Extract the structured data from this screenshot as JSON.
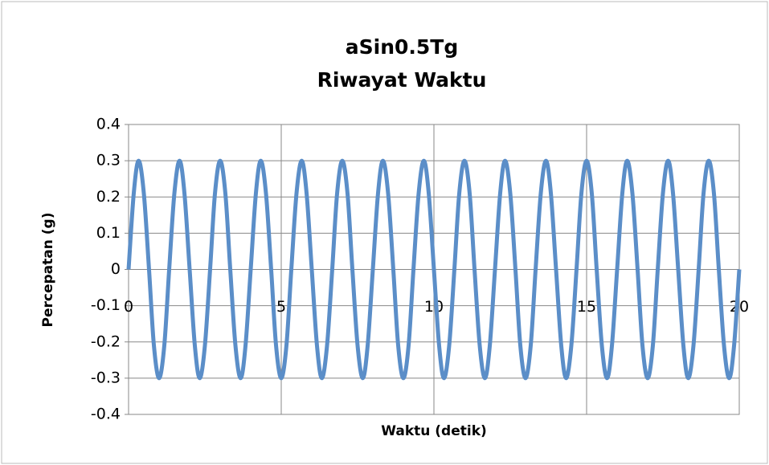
{
  "chart_data": {
    "type": "line",
    "title": "aSin0.5Tg",
    "subtitle": "Riwayat Waktu",
    "x_label": "Waktu (detik)",
    "y_label": "Percepatan (g)",
    "x": [
      0,
      0.17,
      0.33,
      0.5,
      0.67,
      0.83,
      1,
      1.17,
      1.33,
      1.5,
      1.67,
      1.83,
      2,
      2.17,
      2.33,
      2.5,
      2.67,
      2.83,
      3,
      3.17,
      3.33,
      3.5,
      3.67,
      3.83,
      4,
      4.17,
      4.33,
      4.5,
      4.67,
      4.83,
      5,
      5.17,
      5.33,
      5.5,
      5.67,
      5.83,
      6,
      6.17,
      6.33,
      6.5,
      6.67,
      6.83,
      7,
      7.17,
      7.33,
      7.5,
      7.67,
      7.83,
      8,
      8.17,
      8.33,
      8.5,
      8.67,
      8.83,
      9,
      9.17,
      9.33,
      9.5,
      9.67,
      9.83,
      10,
      10.17,
      10.33,
      10.5,
      10.67,
      10.83,
      11,
      11.17,
      11.33,
      11.5,
      11.67,
      11.83,
      12,
      12.17,
      12.33,
      12.5,
      12.67,
      12.83,
      13,
      13.17,
      13.33,
      13.5,
      13.67,
      13.83,
      14,
      14.17,
      14.33,
      14.5,
      14.67,
      14.83,
      15,
      15.17,
      15.33,
      15.5,
      15.67,
      15.83,
      16,
      16.17,
      16.33,
      16.5,
      16.67,
      16.83,
      17,
      17.17,
      17.33,
      17.5,
      17.67,
      17.83,
      18,
      18.17,
      18.33,
      18.5,
      18.67,
      18.83,
      19,
      19.17,
      19.33,
      19.5,
      19.67,
      19.83,
      20
    ],
    "series": [
      {
        "color": "#5b8ec8",
        "values": [
          0,
          0.21,
          0.3,
          0.21,
          0,
          -0.21,
          -0.3,
          -0.21,
          0,
          0.21,
          0.3,
          0.21,
          0,
          -0.21,
          -0.3,
          -0.21,
          0,
          0.21,
          0.3,
          0.21,
          0,
          -0.21,
          -0.3,
          -0.21,
          0,
          0.21,
          0.3,
          0.21,
          0,
          -0.21,
          -0.3,
          -0.21,
          0,
          0.21,
          0.3,
          0.21,
          0,
          -0.21,
          -0.3,
          -0.21,
          0,
          0.21,
          0.3,
          0.21,
          0,
          -0.21,
          -0.3,
          -0.21,
          0,
          0.21,
          0.3,
          0.21,
          0,
          -0.21,
          -0.3,
          -0.21,
          0,
          0.21,
          0.3,
          0.21,
          0,
          -0.21,
          -0.3,
          -0.21,
          0,
          0.21,
          0.3,
          0.21,
          0,
          -0.21,
          -0.3,
          -0.21,
          0,
          0.21,
          0.3,
          0.21,
          0,
          -0.21,
          -0.3,
          -0.21,
          0,
          0.21,
          0.3,
          0.21,
          0,
          -0.21,
          -0.3,
          -0.21,
          0,
          0.21,
          0.3,
          0.21,
          0,
          -0.21,
          -0.3,
          -0.21,
          0,
          0.21,
          0.3,
          0.21,
          0,
          -0.21,
          -0.3,
          -0.21,
          0,
          0.21,
          0.3,
          0.21,
          0,
          -0.21,
          -0.3,
          -0.21,
          0,
          0.21,
          0.3,
          0.21,
          0,
          -0.21,
          -0.3,
          -0.21,
          0
        ]
      }
    ],
    "xlim": [
      0,
      20
    ],
    "xticks": [
      0,
      5,
      10,
      15,
      20
    ],
    "ylim": [
      -0.4,
      0.4
    ],
    "yticks": [
      -0.4,
      -0.3,
      -0.2,
      -0.1,
      0,
      0.1,
      0.2,
      0.3,
      0.4
    ],
    "grid": true
  }
}
